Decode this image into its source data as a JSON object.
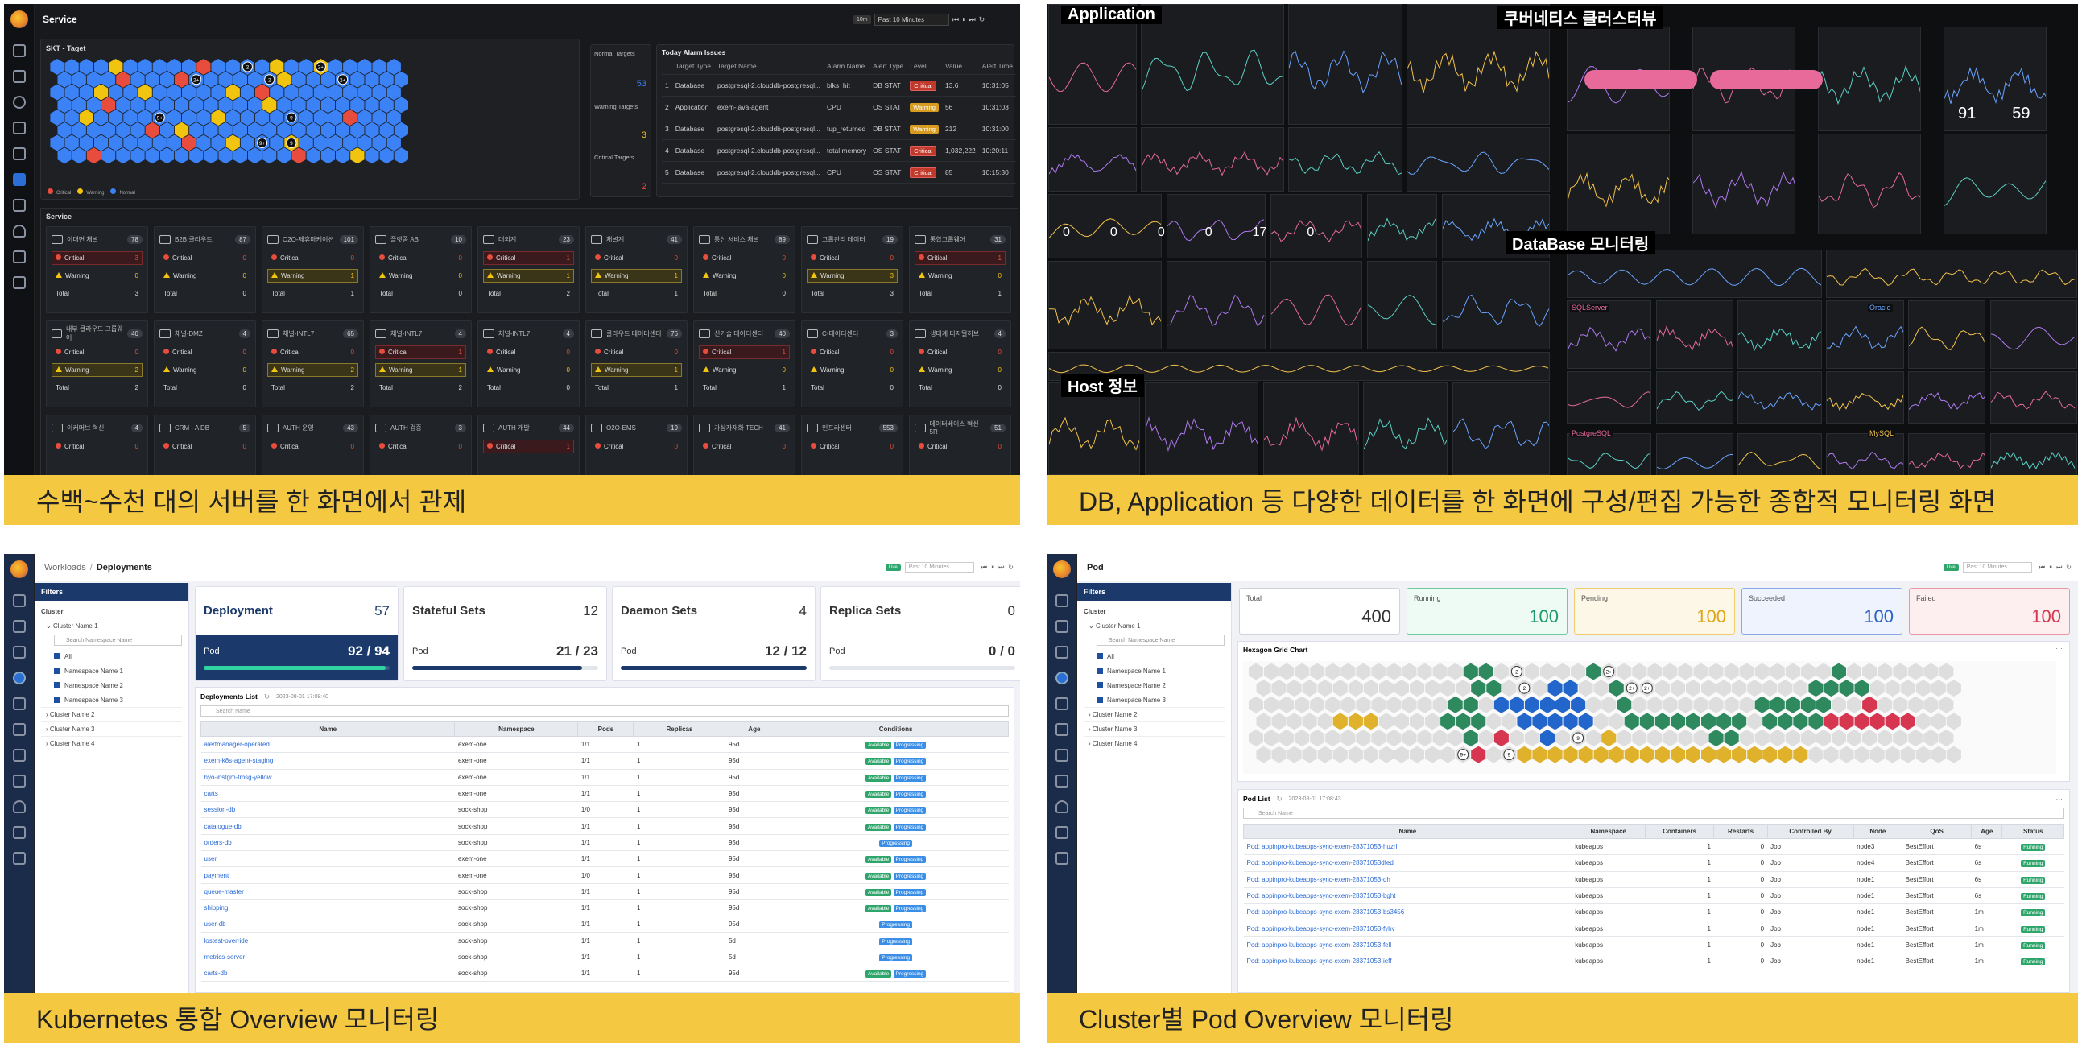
{
  "captions": {
    "c1": "수백~수천 대의 서버를 한 화면에서 관제",
    "c2": "DB, Application 등 다양한 데이터를 한 화면에 구성/편집 가능한 종합적 모니터링 화면",
    "c3": "Kubernetes 통합 Overview 모니터링",
    "c4": "Cluster별 Pod Overview 모니터링"
  },
  "p1": {
    "title": "Service",
    "time_badge": "10m",
    "time_range": "Past 10 Minutes",
    "hex_title": "SKT - Taget",
    "legend": [
      "Critical",
      "Warning",
      "Normal"
    ],
    "normal_targets_label": "Normal Targets",
    "normal_targets": "53",
    "warning_targets_label": "Warning Targets",
    "warning_targets": "3",
    "critical_targets_label": "Critical Targets",
    "critical_targets": "2",
    "alarm_title": "Today Alarm Issues",
    "alarm_cols": [
      "",
      "Target Type",
      "Target Name",
      "Alarm Name",
      "Alert Type",
      "Level",
      "Value",
      "Alert Time"
    ],
    "alarms": [
      [
        "1",
        "Database",
        "postgresql-2.clouddb-postgresql...",
        "blks_hit",
        "DB STAT",
        "Critical",
        "13.6",
        "10:31:05"
      ],
      [
        "2",
        "Application",
        "exem-java-agent",
        "CPU",
        "OS STAT",
        "Warning",
        "56",
        "10:31:03"
      ],
      [
        "3",
        "Database",
        "postgresql-2.clouddb-postgresql...",
        "tup_returned",
        "DB STAT",
        "Warning",
        "212",
        "10:31:00"
      ],
      [
        "4",
        "Database",
        "postgresql-2.clouddb-postgresql...",
        "total memory",
        "OS STAT",
        "Critical",
        "1,032,222",
        "10:20:11"
      ],
      [
        "5",
        "Database",
        "postgresql-2.clouddb-postgresql...",
        "CPU",
        "OS STAT",
        "Critical",
        "85",
        "10:15:30"
      ]
    ],
    "service_title": "Service",
    "labels": {
      "critical": "Critical",
      "warning": "Warning",
      "total": "Total"
    },
    "services": [
      {
        "name": "이대면 채널",
        "count": "78",
        "c": "3",
        "w": "0",
        "t": "3"
      },
      {
        "name": "B2B 클라우드",
        "count": "87",
        "c": "0",
        "w": "0",
        "t": "0"
      },
      {
        "name": "O2O-제휴마케이션",
        "count": "101",
        "c": "0",
        "w": "1",
        "t": "1"
      },
      {
        "name": "플랫폼 AB",
        "count": "10",
        "c": "0",
        "w": "0",
        "t": "0"
      },
      {
        "name": "대외계",
        "count": "23",
        "c": "1",
        "w": "1",
        "t": "2"
      },
      {
        "name": "채널계",
        "count": "41",
        "c": "0",
        "w": "1",
        "t": "1"
      },
      {
        "name": "통신 서비스 채널",
        "count": "89",
        "c": "0",
        "w": "0",
        "t": "0"
      },
      {
        "name": "그룹관리 데이터",
        "count": "19",
        "c": "0",
        "w": "3",
        "t": "3"
      },
      {
        "name": "통합그룹웨어",
        "count": "31",
        "c": "1",
        "w": "0",
        "t": "1"
      },
      {
        "name": "내부 클라우드 그룹웨어",
        "count": "40",
        "c": "0",
        "w": "2",
        "t": "2"
      },
      {
        "name": "채널-DMZ",
        "count": "4",
        "c": "0",
        "w": "0",
        "t": "0"
      },
      {
        "name": "채널-INTL7",
        "count": "65",
        "c": "0",
        "w": "2",
        "t": "2"
      },
      {
        "name": "채널-INTL7",
        "count": "4",
        "c": "1",
        "w": "1",
        "t": "2"
      },
      {
        "name": "채널-INTL7",
        "count": "4",
        "c": "0",
        "w": "0",
        "t": "0"
      },
      {
        "name": "클라우드 데이터센터",
        "count": "76",
        "c": "0",
        "w": "1",
        "t": "1"
      },
      {
        "name": "신기술 데이터센터",
        "count": "40",
        "c": "1",
        "w": "0",
        "t": "1"
      },
      {
        "name": "C-데이터센터",
        "count": "3",
        "c": "0",
        "w": "0",
        "t": "0"
      },
      {
        "name": "생태계 디지털허브",
        "count": "4",
        "c": "0",
        "w": "0",
        "t": "0"
      },
      {
        "name": "이커머브 혁신",
        "count": "4",
        "c": "0",
        "w": "",
        "t": ""
      },
      {
        "name": "CRM - A DB",
        "count": "5",
        "c": "0",
        "w": "",
        "t": ""
      },
      {
        "name": "AUTH 운영",
        "count": "43",
        "c": "0",
        "w": "",
        "t": ""
      },
      {
        "name": "AUTH 검증",
        "count": "3",
        "c": "0",
        "w": "",
        "t": ""
      },
      {
        "name": "AUTH 개발",
        "count": "44",
        "c": "1",
        "w": "",
        "t": ""
      },
      {
        "name": "O2O-EMS",
        "count": "19",
        "c": "0",
        "w": "",
        "t": ""
      },
      {
        "name": "가상자재화 TECH",
        "count": "41",
        "c": "0",
        "w": "",
        "t": ""
      },
      {
        "name": "인프라센터",
        "count": "553",
        "c": "0",
        "w": "",
        "t": ""
      },
      {
        "name": "데이터베이스 혁신 5R",
        "count": "51",
        "c": "0",
        "w": "",
        "t": ""
      }
    ]
  },
  "p2": {
    "app_label": "Application",
    "k8s_label": "쿠버네티스 클러스터뷰",
    "db_label": "DataBase 모니터링",
    "host_label": "Host 정보",
    "big_nums": [
      "0",
      "0",
      "0",
      "0",
      "17",
      "0"
    ],
    "k8s_nums": [
      "91",
      "59"
    ],
    "sql_server": "SQLServer",
    "oracle": "Oracle",
    "postgresql": "PostgreSQL",
    "mysql": "MySQL"
  },
  "p3": {
    "breadcrumb_1": "Workloads",
    "breadcrumb_sep": "/",
    "breadcrumb_2": "Deployments",
    "live": "Live",
    "time_range": "Past 10 Minutes",
    "filters": "Filters",
    "cluster": "Cluster",
    "cluster1": "Cluster Name 1",
    "ns_search": "Search Namespace Name",
    "ns": [
      "All",
      "Namespace Name 1",
      "Namespace Name 2",
      "Namespace Name 3"
    ],
    "clusters": [
      "Cluster Name 2",
      "Cluster Name 3",
      "Cluster Name 4"
    ],
    "summary": [
      {
        "title": "Deployment",
        "count": "57",
        "sub": "Pod",
        "v1": "92",
        "v2": "94",
        "fill": 0.979
      },
      {
        "title": "Stateful Sets",
        "count": "12",
        "sub": "Pod",
        "v1": "21",
        "v2": "23",
        "fill": 0.913
      },
      {
        "title": "Daemon Sets",
        "count": "4",
        "sub": "Pod",
        "v1": "12",
        "v2": "12",
        "fill": 1
      },
      {
        "title": "Replica Sets",
        "count": "0",
        "sub": "Pod",
        "v1": "0",
        "v2": "0",
        "fill": 0
      }
    ],
    "list_title": "Deployments List",
    "list_time": "2023-08-01 17:08:40",
    "search": "Search Name",
    "cols": [
      "Name",
      "Namespace",
      "Pods",
      "Replicas",
      "Age",
      "Conditions"
    ],
    "rows": [
      [
        "alertmanager-operated",
        "exem-one",
        "1/1",
        "1",
        "95d",
        "both"
      ],
      [
        "exem-k8s-agent-staging",
        "exem-one",
        "1/1",
        "1",
        "95d",
        "both"
      ],
      [
        "hyo-instgm-tmsg-yellow",
        "exem-one",
        "1/1",
        "1",
        "95d",
        "both"
      ],
      [
        "carts",
        "exem-one",
        "1/1",
        "1",
        "95d",
        "both"
      ],
      [
        "session-db",
        "sock-shop",
        "1/0",
        "1",
        "95d",
        "both"
      ],
      [
        "catalogue-db",
        "sock-shop",
        "1/1",
        "1",
        "95d",
        "both"
      ],
      [
        "orders-db",
        "sock-shop",
        "1/1",
        "1",
        "95d",
        "prog"
      ],
      [
        "user",
        "exem-one",
        "1/1",
        "1",
        "95d",
        "both"
      ],
      [
        "payment",
        "exem-one",
        "1/0",
        "1",
        "95d",
        "both"
      ],
      [
        "queue-master",
        "sock-shop",
        "1/1",
        "1",
        "95d",
        "both"
      ],
      [
        "shipping",
        "sock-shop",
        "1/1",
        "1",
        "95d",
        "both"
      ],
      [
        "user-db",
        "sock-shop",
        "1/1",
        "1",
        "95d",
        "prog"
      ],
      [
        "lostest-override",
        "sock-shop",
        "1/1",
        "1",
        "5d",
        "prog"
      ],
      [
        "metrics-server",
        "sock-shop",
        "1/1",
        "1",
        "5d",
        "prog"
      ],
      [
        "carts-db",
        "sock-shop",
        "1/1",
        "1",
        "95d",
        "both"
      ]
    ],
    "available": "Available",
    "progressing": "Progressing"
  },
  "p4": {
    "title": "Pod",
    "live": "Live",
    "time_range": "Past 10 Minutes",
    "stats": [
      {
        "label": "Total",
        "value": "400",
        "color": "#333",
        "bg": "#ffffff",
        "bd": "#d0d4da"
      },
      {
        "label": "Running",
        "value": "100",
        "color": "#1c9a6a",
        "bg": "#eefaf4",
        "bd": "#6ecba0"
      },
      {
        "label": "Pending",
        "value": "100",
        "color": "#e0a516",
        "bg": "#fdf7e8",
        "bd": "#f0cc70"
      },
      {
        "label": "Succeeded",
        "value": "100",
        "color": "#2860c8",
        "bg": "#eef3fd",
        "bd": "#8aa8e8"
      },
      {
        "label": "Failed",
        "value": "100",
        "color": "#d6364f",
        "bg": "#fdeef0",
        "bd": "#ec96a3"
      }
    ],
    "hex_title": "Hexagon Grid Chart",
    "list_title": "Pod List",
    "list_time": "2023-08-01 17:08:43",
    "search": "Search Name",
    "cols": [
      "Name",
      "Namespace",
      "Containers",
      "Restarts",
      "Controlled By",
      "Node",
      "QoS",
      "Age",
      "Status"
    ],
    "rows": [
      [
        "Pod: appinpro-kubeapps-sync-exem-28371053-huzrl",
        "kubeapps",
        "1",
        "0",
        "Job",
        "node3",
        "BestEffort",
        "6s"
      ],
      [
        "Pod: appinpro-kubeapps-sync-exem-28371053dfed",
        "kubeapps",
        "1",
        "0",
        "Job",
        "node4",
        "BestEffort",
        "6s"
      ],
      [
        "Pod: appinpro-kubeapps-sync-exem-28371053-dh",
        "kubeapps",
        "1",
        "0",
        "Job",
        "node1",
        "BestEffort",
        "6s"
      ],
      [
        "Pod: appinpro-kubeapps-sync-exem-28371053-bght",
        "kubeapps",
        "1",
        "0",
        "Job",
        "node1",
        "BestEffort",
        "6s"
      ],
      [
        "Pod: appinpro-kubeapps-sync-exem-28371053-bs3456",
        "kubeapps",
        "1",
        "0",
        "Job",
        "node1",
        "BestEffort",
        "1m"
      ],
      [
        "Pod: appinpro-kubeapps-sync-exem-28371053-fyhv",
        "kubeapps",
        "1",
        "0",
        "Job",
        "node1",
        "BestEffort",
        "1m"
      ],
      [
        "Pod: appinpro-kubeapps-sync-exem-28371053-fell",
        "kubeapps",
        "1",
        "0",
        "Job",
        "node1",
        "BestEffort",
        "1m"
      ],
      [
        "Pod: appinpro-kubeapps-sync-exem-28371053-ieff",
        "kubeapps",
        "1",
        "0",
        "Job",
        "node1",
        "BestEffort",
        "1m"
      ]
    ],
    "running": "Running"
  }
}
